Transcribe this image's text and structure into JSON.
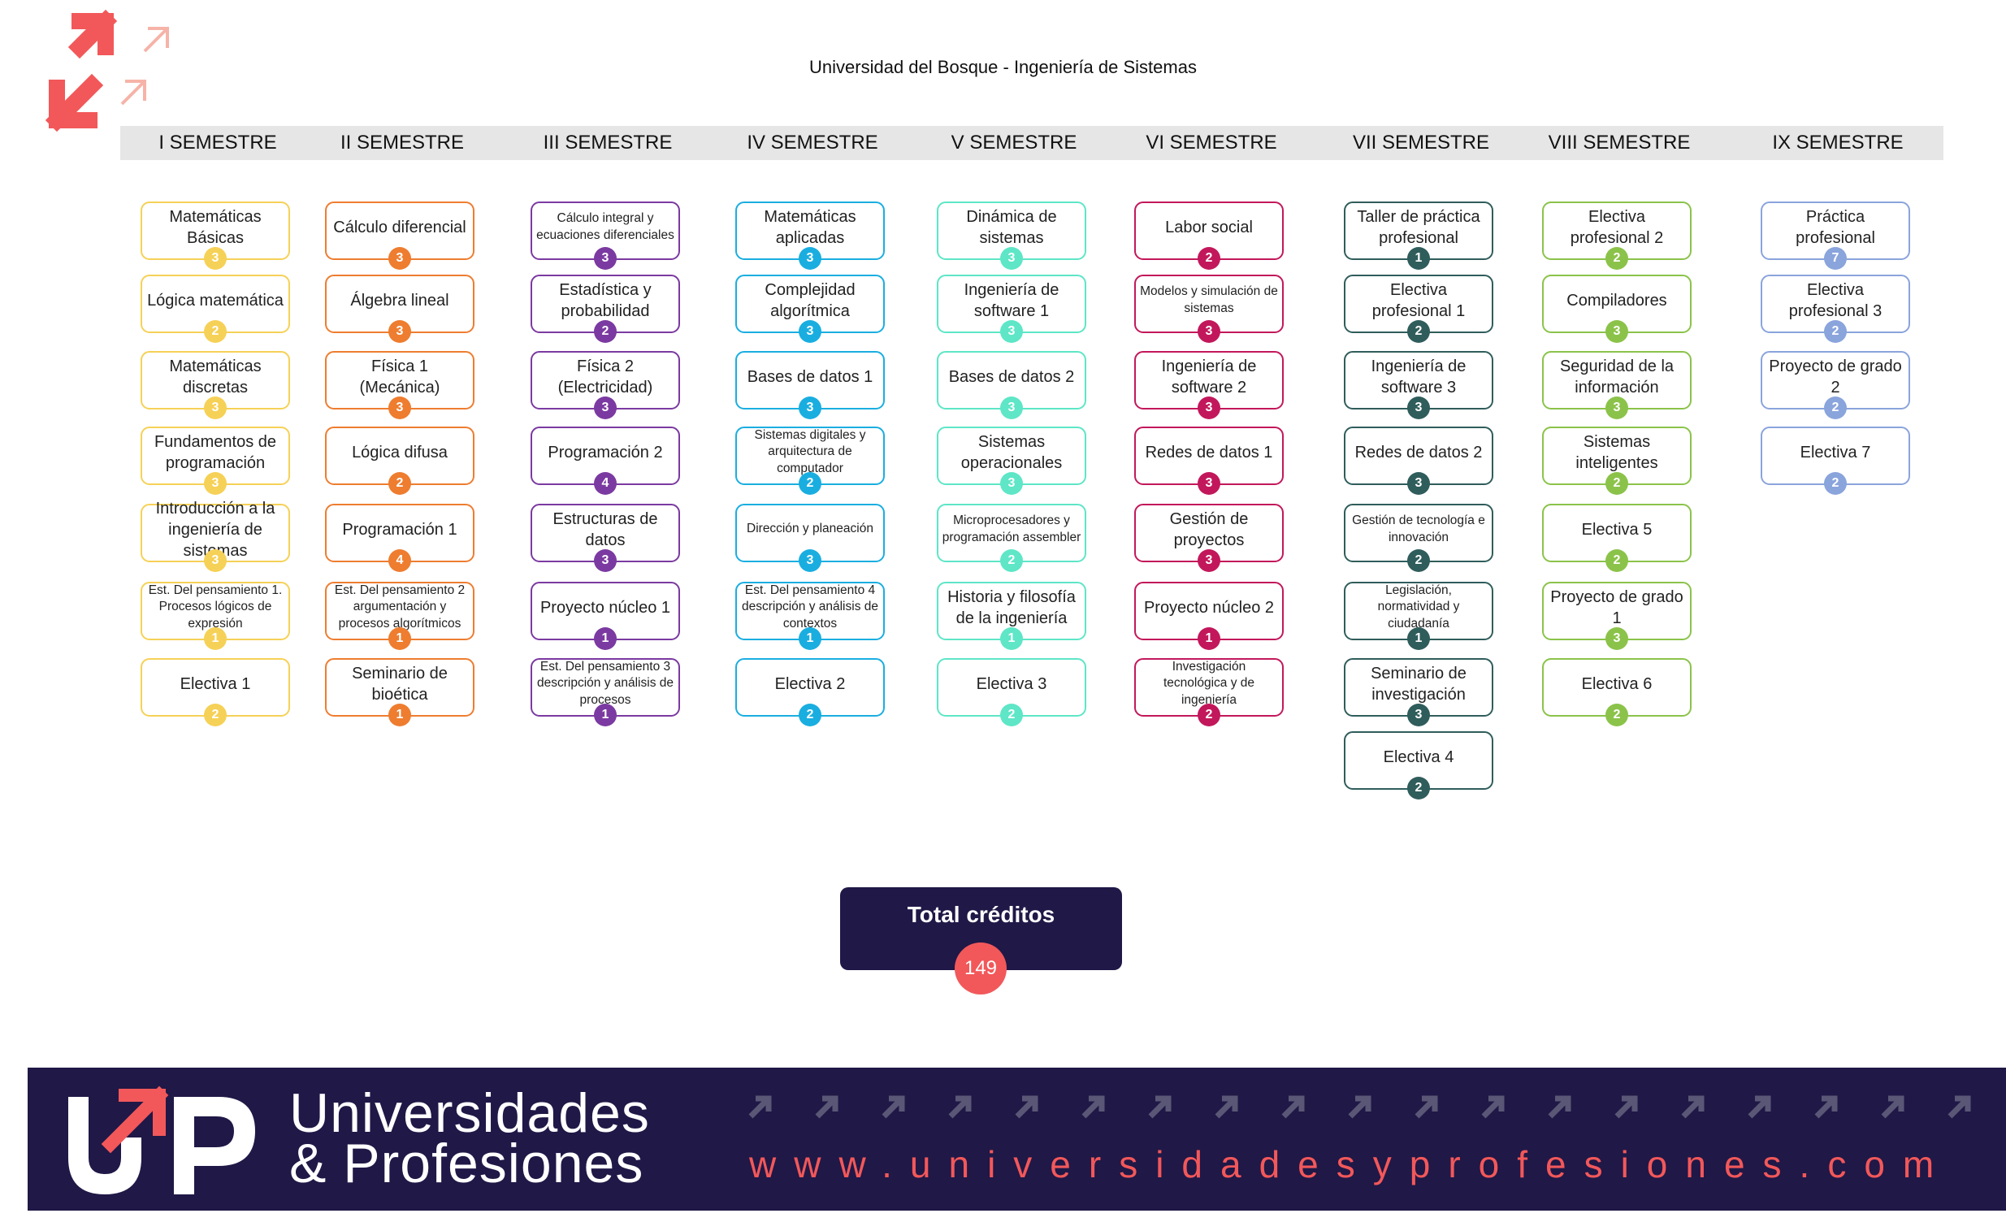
{
  "title": "Universidad del Bosque - Ingeniería de Sistemas",
  "semesters": [
    {
      "name": "I SEMESTRE",
      "color": "#f6d157",
      "courses": [
        {
          "name": "Matemáticas Básicas",
          "credits": "3"
        },
        {
          "name": "Lógica matemática",
          "credits": "2"
        },
        {
          "name": "Matemáticas discretas",
          "credits": "3"
        },
        {
          "name": "Fundamentos de programación",
          "credits": "3"
        },
        {
          "name": "Introducción a la ingeniería de sistemas",
          "credits": "3"
        },
        {
          "name": "Est. Del pensamiento 1. Procesos lógicos de expresión",
          "credits": "1",
          "small": true
        },
        {
          "name": "Electiva 1",
          "credits": "2"
        }
      ]
    },
    {
      "name": "II SEMESTRE",
      "color": "#ee7d30",
      "courses": [
        {
          "name": "Cálculo diferencial",
          "credits": "3"
        },
        {
          "name": "Álgebra lineal",
          "credits": "3"
        },
        {
          "name": "Física 1 (Mecánica)",
          "credits": "3"
        },
        {
          "name": "Lógica difusa",
          "credits": "2"
        },
        {
          "name": "Programación 1",
          "credits": "4"
        },
        {
          "name": "Est. Del pensamiento 2 argumentación y procesos algorítmicos",
          "credits": "1",
          "small": true
        },
        {
          "name": "Seminario de bioética",
          "credits": "1"
        }
      ]
    },
    {
      "name": "III SEMESTRE",
      "color": "#7b3aa1",
      "courses": [
        {
          "name": "Cálculo integral y ecuaciones diferenciales",
          "credits": "3",
          "small": true
        },
        {
          "name": "Estadística y probabilidad",
          "credits": "2"
        },
        {
          "name": "Física 2 (Electricidad)",
          "credits": "3"
        },
        {
          "name": "Programación 2",
          "credits": "4"
        },
        {
          "name": "Estructuras de datos",
          "credits": "3"
        },
        {
          "name": "Proyecto núcleo 1",
          "credits": "1"
        },
        {
          "name": "Est. Del pensamiento 3 descripción y análisis de procesos",
          "credits": "1",
          "small": true
        }
      ]
    },
    {
      "name": "IV SEMESTRE",
      "color": "#1aaee0",
      "courses": [
        {
          "name": "Matemáticas aplicadas",
          "credits": "3"
        },
        {
          "name": "Complejidad algorítmica",
          "credits": "3"
        },
        {
          "name": "Bases de datos 1",
          "credits": "3"
        },
        {
          "name": "Sistemas digitales y arquitectura de computador",
          "credits": "2",
          "small": true
        },
        {
          "name": "Dirección y planeación",
          "credits": "3",
          "small": true
        },
        {
          "name": "Est. Del pensamiento 4 descripción y análisis de contextos",
          "credits": "1",
          "small": true
        },
        {
          "name": "Electiva 2",
          "credits": "2"
        }
      ]
    },
    {
      "name": "V SEMESTRE",
      "color": "#5ee6c7",
      "courses": [
        {
          "name": "Dinámica de sistemas",
          "credits": "3"
        },
        {
          "name": "Ingeniería de software 1",
          "credits": "3"
        },
        {
          "name": "Bases de datos 2",
          "credits": "3"
        },
        {
          "name": "Sistemas operacionales",
          "credits": "3"
        },
        {
          "name": "Microprocesadores y programación assembler",
          "credits": "2",
          "small": true
        },
        {
          "name": "Historia y filosofía de la ingeniería",
          "credits": "1"
        },
        {
          "name": "Electiva 3",
          "credits": "2"
        }
      ]
    },
    {
      "name": "VI SEMESTRE",
      "color": "#c2185b",
      "courses": [
        {
          "name": "Labor social",
          "credits": "2"
        },
        {
          "name": "Modelos y simulación de sistemas",
          "credits": "3",
          "small": true
        },
        {
          "name": "Ingeniería de software 2",
          "credits": "3"
        },
        {
          "name": "Redes de datos 1",
          "credits": "3"
        },
        {
          "name": "Gestión de proyectos",
          "credits": "3"
        },
        {
          "name": "Proyecto núcleo 2",
          "credits": "1"
        },
        {
          "name": "Investigación tecnológica y de ingeniería",
          "credits": "2",
          "small": true
        }
      ]
    },
    {
      "name": "VII SEMESTRE",
      "color": "#2f5d5b",
      "courses": [
        {
          "name": "Taller de práctica profesional",
          "credits": "1"
        },
        {
          "name": "Electiva profesional 1",
          "credits": "2"
        },
        {
          "name": "Ingeniería de software 3",
          "credits": "3"
        },
        {
          "name": "Redes de datos 2",
          "credits": "3"
        },
        {
          "name": "Gestión de tecnología e innovación",
          "credits": "2",
          "small": true
        },
        {
          "name": "Legislación, normatividad y ciudadanía",
          "credits": "1",
          "small": true
        },
        {
          "name": "Seminario de investigación",
          "credits": "3"
        },
        {
          "name": "Electiva 4",
          "credits": "2"
        }
      ]
    },
    {
      "name": "VIII SEMESTRE",
      "color": "#8bc34a",
      "courses": [
        {
          "name": "Electiva profesional 2",
          "credits": "2"
        },
        {
          "name": "Compiladores",
          "credits": "3"
        },
        {
          "name": "Seguridad de la información",
          "credits": "3"
        },
        {
          "name": "Sistemas inteligentes",
          "credits": "2"
        },
        {
          "name": "Electiva 5",
          "credits": "2"
        },
        {
          "name": "Proyecto de grado 1",
          "credits": "3"
        },
        {
          "name": "Electiva 6",
          "credits": "2"
        }
      ]
    },
    {
      "name": "IX SEMESTRE",
      "color": "#8aa4dc",
      "courses": [
        {
          "name": "Práctica profesional",
          "credits": "7"
        },
        {
          "name": "Electiva profesional 3",
          "credits": "2"
        },
        {
          "name": "Proyecto de grado 2",
          "credits": "2"
        },
        {
          "name": "Electiva 7",
          "credits": "2"
        }
      ]
    }
  ],
  "total": {
    "label": "Total créditos",
    "value": "149"
  },
  "footer": {
    "brand_line1": "Universidades",
    "brand_line2": "& Profesiones",
    "website": "www.universidadesyprofesiones.com"
  },
  "colors": {
    "accent": "#f2585a",
    "navy": "#201847",
    "header_bg": "#e6e6e6"
  },
  "icons": {
    "corner_logo": "up-arrows-logo",
    "footer_logo": "up-logo",
    "arrows": "diagonal-arrow-icon"
  }
}
